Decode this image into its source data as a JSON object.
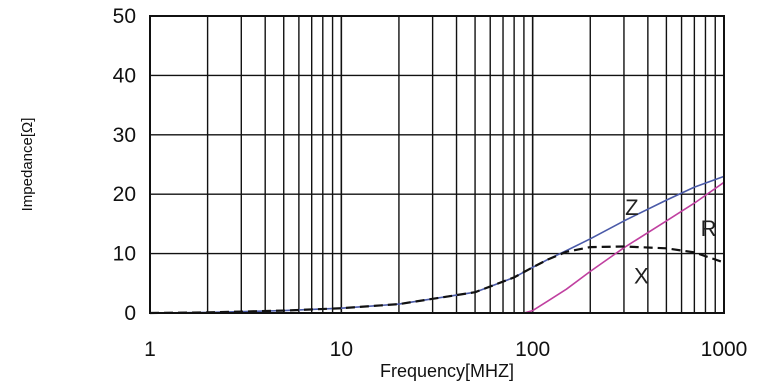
{
  "chart_data": {
    "type": "line",
    "title": "",
    "xlabel": "Frequency[MHZ]",
    "ylabel": "Impedance[Ω]",
    "xscale": "log",
    "xlim": [
      1,
      1000
    ],
    "ylim": [
      0,
      50
    ],
    "grid": true,
    "x_ticks": [
      {
        "value": 1,
        "label": "1"
      },
      {
        "value": 10,
        "label": "10"
      },
      {
        "value": 100,
        "label": "100"
      },
      {
        "value": 1000,
        "label": "1000"
      }
    ],
    "y_ticks": [
      {
        "value": 0,
        "label": "0"
      },
      {
        "value": 10,
        "label": "10"
      },
      {
        "value": 20,
        "label": "20"
      },
      {
        "value": 30,
        "label": "30"
      },
      {
        "value": 40,
        "label": "40"
      },
      {
        "value": 50,
        "label": "50"
      }
    ],
    "series": [
      {
        "name": "Z",
        "color": "#4a5aa8",
        "dash": "solid",
        "label_at": {
          "x": 330,
          "y": 16.5
        },
        "points": [
          [
            1,
            0
          ],
          [
            2,
            0.1
          ],
          [
            5,
            0.4
          ],
          [
            10,
            0.8
          ],
          [
            20,
            1.5
          ],
          [
            50,
            3.5
          ],
          [
            80,
            6
          ],
          [
            100,
            7.7
          ],
          [
            120,
            9
          ],
          [
            150,
            10.5
          ],
          [
            200,
            12.5
          ],
          [
            300,
            15.5
          ],
          [
            500,
            19
          ],
          [
            700,
            21.2
          ],
          [
            1000,
            23
          ]
        ]
      },
      {
        "name": "R",
        "color": "#c040a0",
        "dash": "solid",
        "label_at": {
          "x": 830,
          "y": 13
        },
        "points": [
          [
            1,
            0
          ],
          [
            10,
            0
          ],
          [
            50,
            0
          ],
          [
            90,
            0
          ],
          [
            100,
            0.4
          ],
          [
            120,
            2
          ],
          [
            150,
            4
          ],
          [
            200,
            7
          ],
          [
            300,
            11
          ],
          [
            500,
            15.5
          ],
          [
            700,
            18.5
          ],
          [
            1000,
            22
          ]
        ]
      },
      {
        "name": "X",
        "color": "#111111",
        "dash": "dashed",
        "label_at": {
          "x": 370,
          "y": 5
        },
        "points": [
          [
            1,
            0
          ],
          [
            2,
            0.1
          ],
          [
            5,
            0.4
          ],
          [
            10,
            0.8
          ],
          [
            20,
            1.5
          ],
          [
            50,
            3.5
          ],
          [
            80,
            6
          ],
          [
            100,
            7.7
          ],
          [
            120,
            9
          ],
          [
            150,
            10.3
          ],
          [
            200,
            11.1
          ],
          [
            300,
            11.2
          ],
          [
            500,
            10.9
          ],
          [
            700,
            10.2
          ],
          [
            1000,
            8.5
          ]
        ]
      }
    ]
  }
}
